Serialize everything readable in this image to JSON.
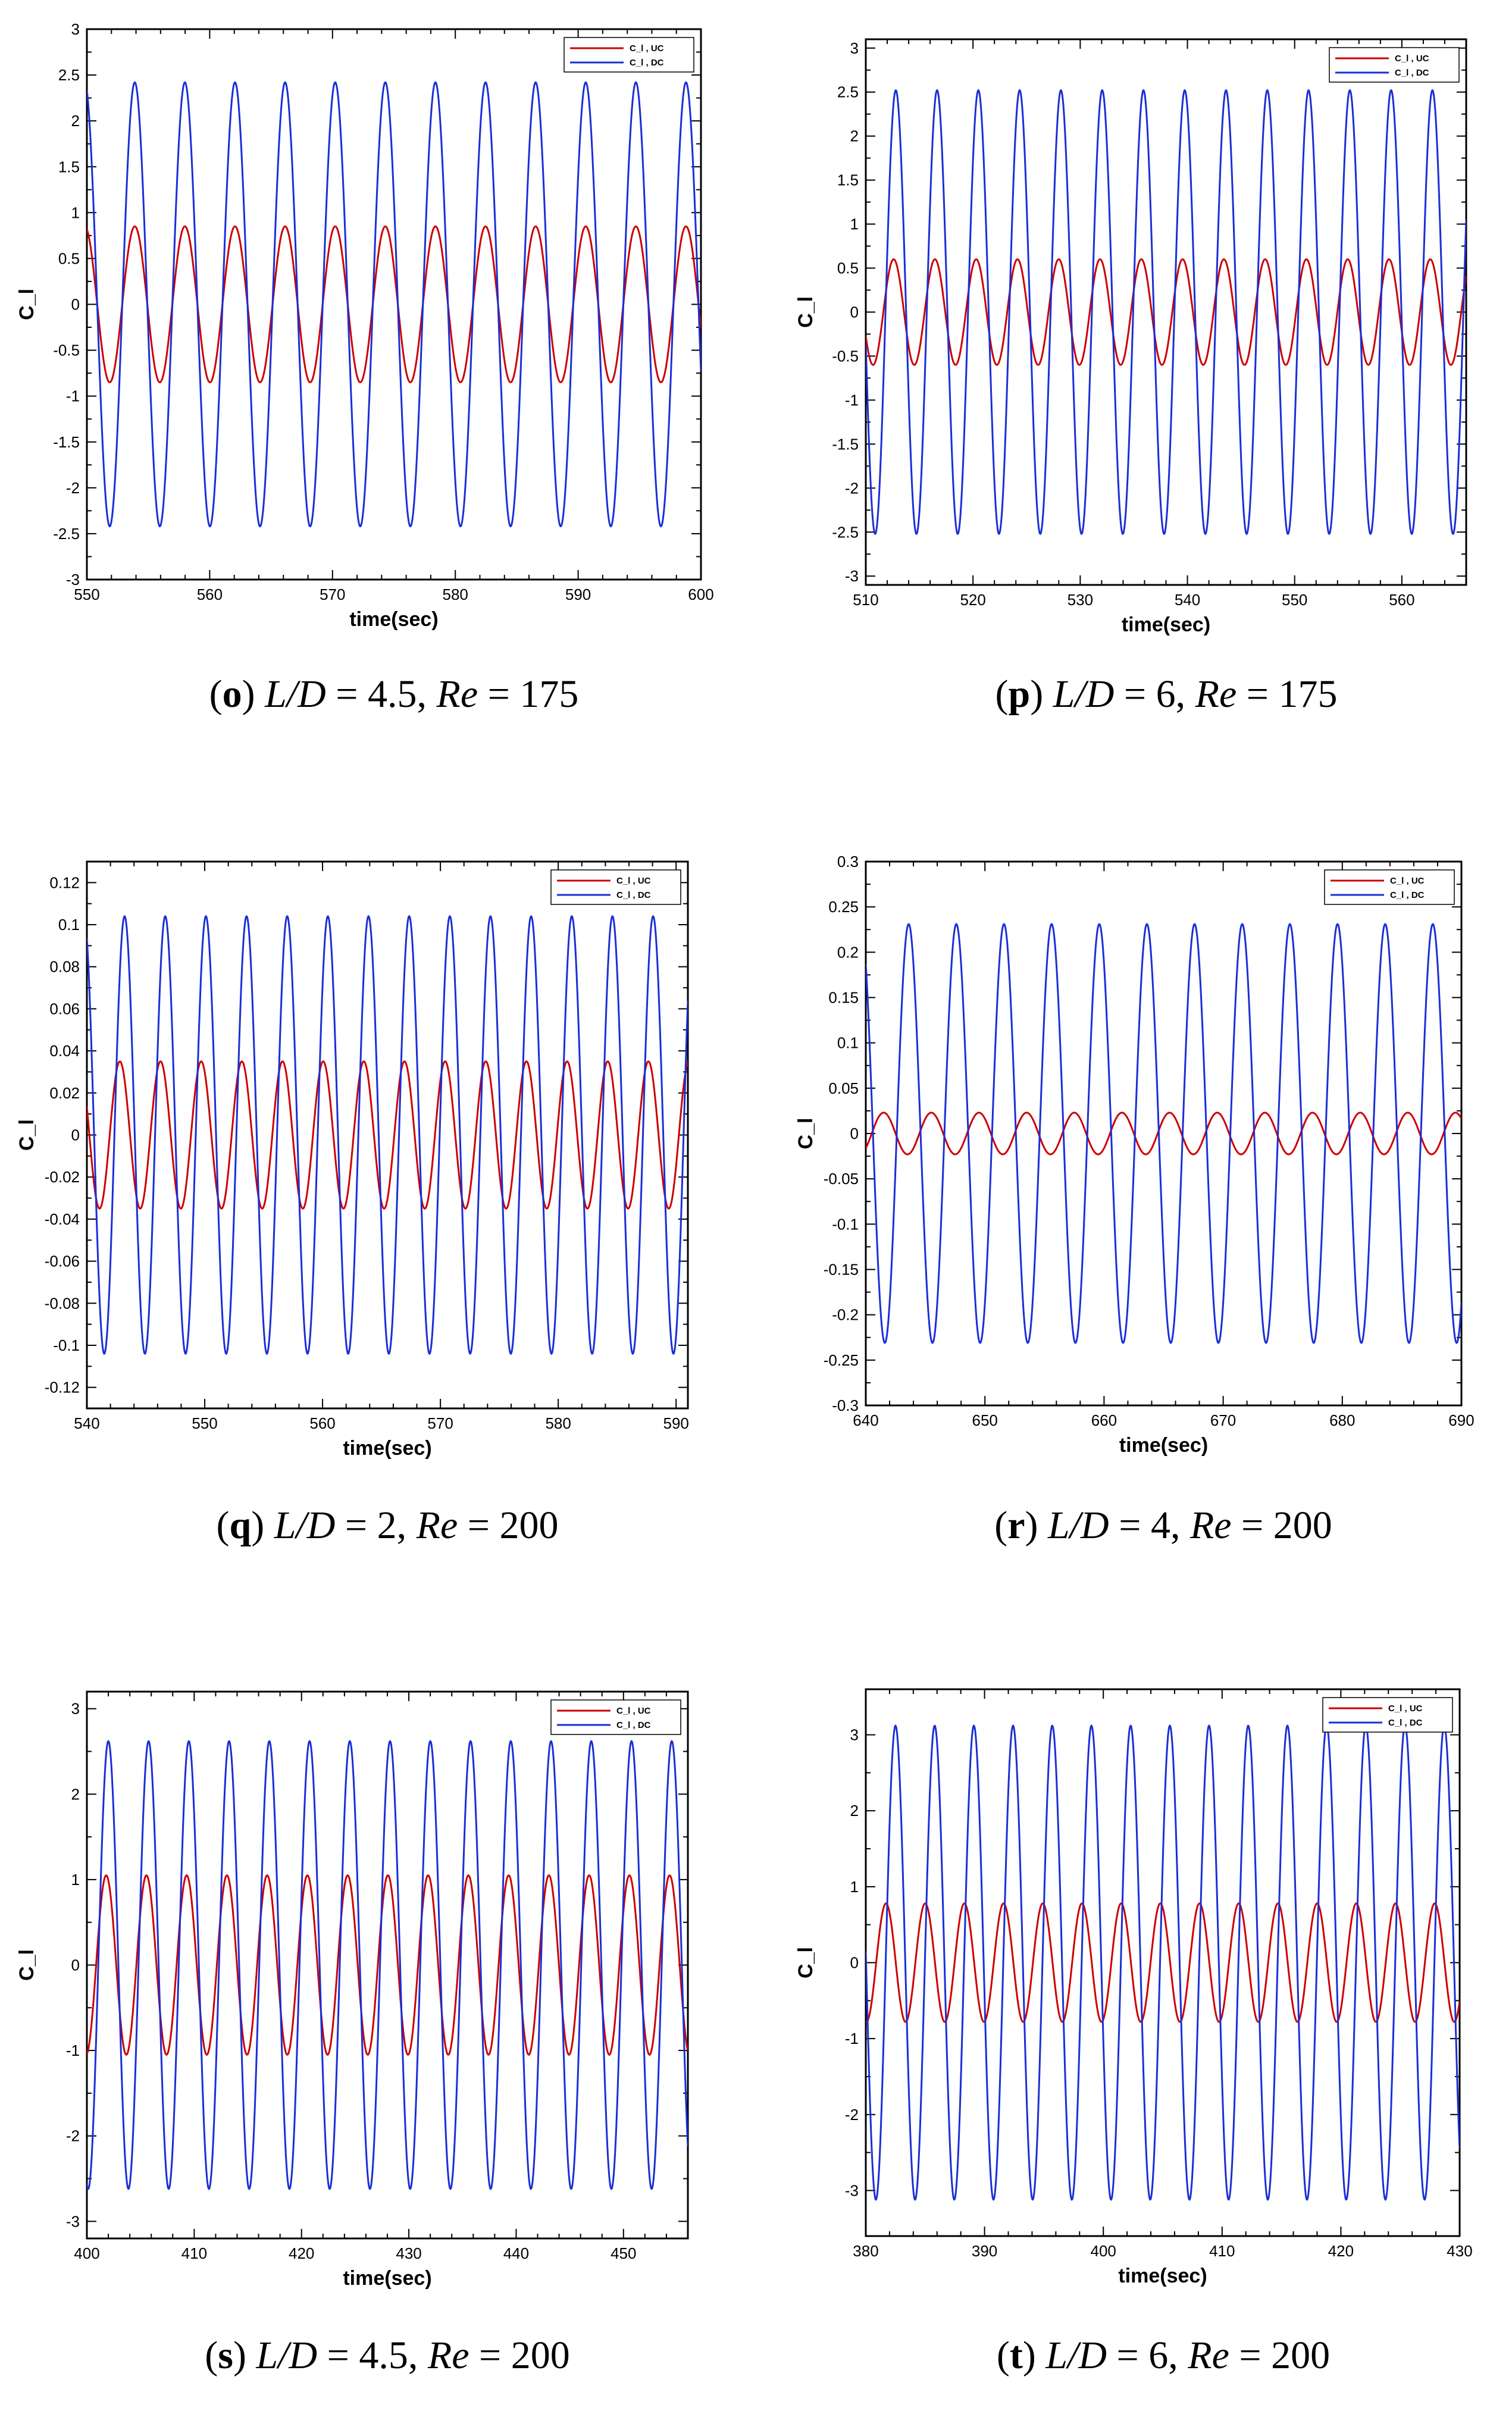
{
  "colors": {
    "uc": "#cc0000",
    "dc": "#1a2fd6",
    "frame": "#000000"
  },
  "chart_data": [
    {
      "id": "o",
      "type": "line",
      "xlabel": "time(sec)",
      "ylabel": "C_l",
      "xlim": [
        550,
        600
      ],
      "ylim": [
        -3,
        3
      ],
      "xticks": [
        "550",
        "560",
        "570",
        "580",
        "590",
        "600"
      ],
      "yticks": [
        "3",
        "2.5",
        "2",
        "1.5",
        "1",
        "0.5",
        "0",
        "-0.5",
        "-1",
        "-1.5",
        "-2",
        "-2.5",
        "-3"
      ],
      "series": [
        {
          "name": "C_l, UC",
          "amplitude": 0.85,
          "period": 4.08,
          "phase_peak": 553.9
        },
        {
          "name": "C_l, DC",
          "amplitude": 2.42,
          "period": 4.08,
          "phase_peak": 553.9
        }
      ],
      "caption": {
        "letter": "o",
        "ld": "4.5",
        "re": "175"
      }
    },
    {
      "id": "p",
      "type": "line",
      "xlabel": "time(sec)",
      "ylabel": "C_l",
      "xlim": [
        510,
        566
      ],
      "ylim": [
        -3.1,
        3.1
      ],
      "xticks": [
        "510",
        "520",
        "530",
        "540",
        "550",
        "560"
      ],
      "yticks": [
        "3",
        "2.5",
        "2",
        "1.5",
        "1",
        "0.5",
        "0",
        "-0.5",
        "-1",
        "-1.5",
        "-2",
        "-2.5",
        "-3"
      ],
      "series": [
        {
          "name": "C_l, UC",
          "amplitude": 0.6,
          "period": 3.85,
          "phase_peak": 512.6
        },
        {
          "name": "C_l, DC",
          "amplitude": 2.52,
          "period": 3.85,
          "phase_peak": 512.8
        }
      ],
      "caption": {
        "letter": "p",
        "ld": "6",
        "re": "175"
      }
    },
    {
      "id": "q",
      "type": "line",
      "xlabel": "time(sec)",
      "ylabel": "C_l",
      "xlim": [
        540,
        591
      ],
      "ylim": [
        -0.13,
        0.13
      ],
      "xticks": [
        "540",
        "550",
        "560",
        "570",
        "580",
        "590"
      ],
      "yticks": [
        "0.12",
        "0.1",
        "0.08",
        "0.06",
        "0.04",
        "0.02",
        "0",
        "-0.02",
        "-0.04",
        "-0.06",
        "-0.08",
        "-0.1",
        "-0.12"
      ],
      "series": [
        {
          "name": "C_l, UC",
          "amplitude": 0.035,
          "period": 3.45,
          "phase_peak": 542.8
        },
        {
          "name": "C_l, DC",
          "amplitude": 0.104,
          "period": 3.45,
          "phase_peak": 543.2
        }
      ],
      "caption": {
        "letter": "q",
        "ld": "2",
        "re": "200"
      }
    },
    {
      "id": "r",
      "type": "line",
      "xlabel": "time(sec)",
      "ylabel": "C_l",
      "xlim": [
        640,
        690
      ],
      "ylim": [
        -0.3,
        0.3
      ],
      "xticks": [
        "640",
        "650",
        "660",
        "670",
        "680",
        "690"
      ],
      "yticks": [
        "0.3",
        "0.25",
        "0.2",
        "0.15",
        "0.1",
        "0.05",
        "0",
        "-0.05",
        "-0.1",
        "-0.15",
        "-0.2",
        "-0.25",
        "-0.3"
      ],
      "series": [
        {
          "name": "C_l, UC",
          "amplitude": 0.023,
          "period": 4.0,
          "phase_peak": 641.5
        },
        {
          "name": "C_l, DC",
          "amplitude": 0.231,
          "period": 4.0,
          "phase_peak": 643.6
        }
      ],
      "caption": {
        "letter": "r",
        "ld": "4",
        "re": "200"
      }
    },
    {
      "id": "s",
      "type": "line",
      "xlabel": "time(sec)",
      "ylabel": "C_l",
      "xlim": [
        400,
        456
      ],
      "ylim": [
        -3.2,
        3.2
      ],
      "xticks": [
        "400",
        "410",
        "420",
        "430",
        "440",
        "450"
      ],
      "yticks": [
        "3",
        "2",
        "1",
        "0",
        "-1",
        "-2",
        "-3"
      ],
      "series": [
        {
          "name": "C_l, UC",
          "amplitude": 1.05,
          "period": 3.75,
          "phase_peak": 401.8
        },
        {
          "name": "C_l, DC",
          "amplitude": 2.62,
          "period": 3.75,
          "phase_peak": 402.0
        }
      ],
      "caption": {
        "letter": "s",
        "ld": "4.5",
        "re": "200"
      }
    },
    {
      "id": "t",
      "type": "line",
      "xlabel": "time(sec)",
      "ylabel": "C_l",
      "xlim": [
        380,
        430
      ],
      "ylim": [
        -3.6,
        3.6
      ],
      "xticks": [
        "380",
        "390",
        "400",
        "410",
        "420",
        "430"
      ],
      "yticks": [
        "3",
        "2",
        "1",
        "0",
        "-1",
        "-2",
        "-3"
      ],
      "series": [
        {
          "name": "C_l, UC",
          "amplitude": 0.78,
          "period": 3.3,
          "phase_peak": 381.7
        },
        {
          "name": "C_l, DC",
          "amplitude": 3.12,
          "period": 3.3,
          "phase_peak": 382.5
        }
      ],
      "caption": {
        "letter": "t",
        "ld": "6",
        "re": "200"
      }
    }
  ],
  "legend": {
    "uc_label": "C_l , UC",
    "dc_label": "C_l , DC"
  },
  "caption_parts": {
    "ld_prefix": "L/D",
    "re_prefix": "Re",
    "equals": " = "
  }
}
